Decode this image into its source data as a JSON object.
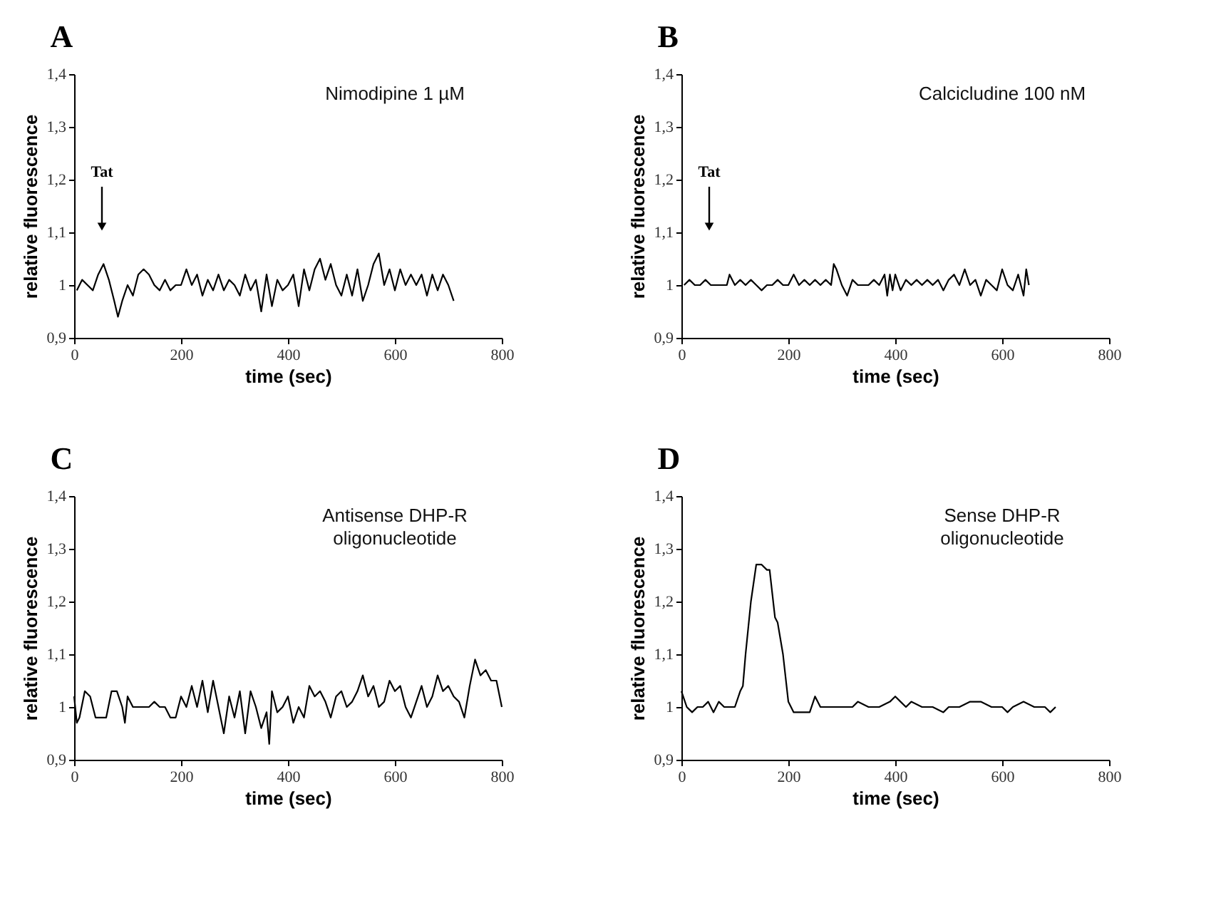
{
  "chart_data": [
    {
      "type": "line",
      "title": "A",
      "xlabel": "time (sec)",
      "ylabel": "relative fluorescence",
      "xlim": [
        0,
        800
      ],
      "xticks": [
        0,
        200,
        400,
        600,
        800
      ],
      "ylim": [
        0.9,
        1.4
      ],
      "yticks": [
        {
          "value": 0.9,
          "label": "0,9"
        },
        1,
        {
          "value": 1.1,
          "label": "1,1"
        },
        {
          "value": 1.2,
          "label": "1,2"
        },
        {
          "value": 1.3,
          "label": "1,3"
        },
        {
          "value": 1.4,
          "label": "1,4"
        }
      ],
      "grid": false,
      "annotations": [
        "Nimodipine 1 µM",
        "Tat"
      ],
      "x": [
        5,
        15,
        25,
        35,
        45,
        55,
        65,
        75,
        82,
        90,
        100,
        110,
        120,
        130,
        140,
        150,
        160,
        170,
        180,
        190,
        200,
        210,
        220,
        230,
        240,
        250,
        260,
        270,
        280,
        290,
        300,
        310,
        320,
        330,
        340,
        350,
        360,
        370,
        380,
        390,
        400,
        410,
        420,
        430,
        440,
        450,
        460,
        470,
        480,
        490,
        500,
        510,
        520,
        530,
        540,
        550,
        560,
        570,
        580,
        590,
        600,
        610,
        620,
        630,
        640,
        650,
        660,
        670,
        680,
        690,
        700,
        710
      ],
      "series": [
        {
          "color": "#000000",
          "values": [
            0.99,
            1.01,
            1.0,
            0.99,
            1.02,
            1.04,
            1.01,
            0.97,
            0.94,
            0.97,
            1.0,
            0.98,
            1.02,
            1.03,
            1.02,
            1.0,
            0.99,
            1.01,
            0.99,
            1.0,
            1.0,
            1.03,
            1.0,
            1.02,
            0.98,
            1.01,
            0.99,
            1.02,
            0.99,
            1.01,
            1.0,
            0.98,
            1.02,
            0.99,
            1.01,
            0.95,
            1.02,
            0.96,
            1.01,
            0.99,
            1.0,
            1.02,
            0.96,
            1.03,
            0.99,
            1.03,
            1.05,
            1.01,
            1.04,
            1.0,
            0.98,
            1.02,
            0.98,
            1.03,
            0.97,
            1.0,
            1.04,
            1.06,
            1.0,
            1.03,
            0.99,
            1.03,
            1.0,
            1.02,
            1.0,
            1.02,
            0.98,
            1.02,
            0.99,
            1.02,
            1.0,
            0.97
          ]
        }
      ]
    },
    {
      "type": "line",
      "title": "B",
      "xlabel": "time (sec)",
      "ylabel": "relative fluorescence",
      "xlim": [
        0,
        800
      ],
      "xticks": [
        0,
        200,
        400,
        600,
        800
      ],
      "ylim": [
        0.9,
        1.4
      ],
      "yticks": [
        {
          "value": 0.9,
          "label": "0,9"
        },
        1,
        {
          "value": 1.1,
          "label": "1,1"
        },
        {
          "value": 1.2,
          "label": "1,2"
        },
        {
          "value": 1.3,
          "label": "1,3"
        },
        {
          "value": 1.4,
          "label": "1,4"
        }
      ],
      "grid": false,
      "annotations": [
        "Calcicludine 100 nM",
        "Tat"
      ],
      "x": [
        5,
        15,
        25,
        35,
        45,
        55,
        65,
        75,
        85,
        90,
        100,
        110,
        120,
        130,
        140,
        150,
        160,
        170,
        180,
        190,
        200,
        210,
        220,
        230,
        240,
        250,
        260,
        270,
        280,
        285,
        290,
        300,
        310,
        320,
        330,
        340,
        350,
        360,
        370,
        380,
        385,
        390,
        395,
        400,
        410,
        420,
        430,
        440,
        450,
        460,
        470,
        480,
        490,
        500,
        510,
        520,
        530,
        540,
        550,
        560,
        570,
        580,
        590,
        600,
        610,
        620,
        630,
        640,
        645,
        650
      ],
      "series": [
        {
          "color": "#000000",
          "values": [
            1.0,
            1.01,
            1.0,
            1.0,
            1.01,
            1.0,
            1.0,
            1.0,
            1.0,
            1.02,
            1.0,
            1.01,
            1.0,
            1.01,
            1.0,
            0.99,
            1.0,
            1.0,
            1.01,
            1.0,
            1.0,
            1.02,
            1.0,
            1.01,
            1.0,
            1.01,
            1.0,
            1.01,
            1.0,
            1.04,
            1.03,
            1.0,
            0.98,
            1.01,
            1.0,
            1.0,
            1.0,
            1.01,
            1.0,
            1.02,
            0.98,
            1.02,
            0.99,
            1.02,
            0.99,
            1.01,
            1.0,
            1.01,
            1.0,
            1.01,
            1.0,
            1.01,
            0.99,
            1.01,
            1.02,
            1.0,
            1.03,
            1.0,
            1.01,
            0.98,
            1.01,
            1.0,
            0.99,
            1.03,
            1.0,
            0.99,
            1.02,
            0.98,
            1.03,
            1.0
          ]
        }
      ]
    },
    {
      "type": "line",
      "title": "C",
      "xlabel": "time (sec)",
      "ylabel": "relative fluorescence",
      "xlim": [
        0,
        800
      ],
      "xticks": [
        0,
        200,
        400,
        600,
        800
      ],
      "ylim": [
        0.9,
        1.4
      ],
      "yticks": [
        {
          "value": 0.9,
          "label": "0,9"
        },
        1,
        {
          "value": 1.1,
          "label": "1,1"
        },
        {
          "value": 1.2,
          "label": "1,2"
        },
        {
          "value": 1.3,
          "label": "1,3"
        },
        {
          "value": 1.4,
          "label": "1,4"
        }
      ],
      "grid": false,
      "annotations": [
        "Antisense DHP-R\noligonucleotide"
      ],
      "x": [
        0,
        5,
        10,
        20,
        30,
        40,
        50,
        60,
        70,
        80,
        90,
        95,
        100,
        110,
        120,
        130,
        140,
        150,
        160,
        170,
        180,
        190,
        200,
        210,
        220,
        230,
        240,
        250,
        260,
        270,
        280,
        290,
        300,
        310,
        320,
        330,
        340,
        350,
        360,
        365,
        370,
        380,
        390,
        400,
        410,
        420,
        430,
        440,
        450,
        460,
        470,
        480,
        490,
        500,
        510,
        520,
        530,
        540,
        550,
        560,
        570,
        580,
        590,
        600,
        610,
        620,
        630,
        640,
        650,
        660,
        670,
        680,
        690,
        700,
        710,
        720,
        730,
        740,
        750,
        760,
        770,
        780,
        790,
        800
      ],
      "series": [
        {
          "color": "#000000",
          "values": [
            1.02,
            0.97,
            0.98,
            1.03,
            1.02,
            0.98,
            0.98,
            0.98,
            1.03,
            1.03,
            1.0,
            0.97,
            1.02,
            1.0,
            1.0,
            1.0,
            1.0,
            1.01,
            1.0,
            1.0,
            0.98,
            0.98,
            1.02,
            1.0,
            1.04,
            1.0,
            1.05,
            0.99,
            1.05,
            1.0,
            0.95,
            1.02,
            0.98,
            1.03,
            0.95,
            1.03,
            1.0,
            0.96,
            0.99,
            0.93,
            1.03,
            0.99,
            1.0,
            1.02,
            0.97,
            1.0,
            0.98,
            1.04,
            1.02,
            1.03,
            1.01,
            0.98,
            1.02,
            1.03,
            1.0,
            1.01,
            1.03,
            1.06,
            1.02,
            1.04,
            1.0,
            1.01,
            1.05,
            1.03,
            1.04,
            1.0,
            0.98,
            1.01,
            1.04,
            1.0,
            1.02,
            1.06,
            1.03,
            1.04,
            1.02,
            1.01,
            0.98,
            1.04,
            1.09,
            1.06,
            1.07,
            1.05,
            1.05,
            1.0
          ]
        }
      ]
    },
    {
      "type": "line",
      "title": "D",
      "xlabel": "time (sec)",
      "ylabel": "relative fluorescence",
      "xlim": [
        0,
        800
      ],
      "xticks": [
        0,
        200,
        400,
        600,
        800
      ],
      "ylim": [
        0.9,
        1.4
      ],
      "yticks": [
        {
          "value": 0.9,
          "label": "0,9"
        },
        1,
        {
          "value": 1.1,
          "label": "1,1"
        },
        {
          "value": 1.2,
          "label": "1,2"
        },
        {
          "value": 1.3,
          "label": "1,3"
        },
        {
          "value": 1.4,
          "label": "1,4"
        }
      ],
      "grid": false,
      "annotations": [
        "Sense DHP-R\noligonucleotide"
      ],
      "x": [
        0,
        10,
        20,
        30,
        40,
        50,
        60,
        70,
        80,
        90,
        100,
        110,
        115,
        120,
        130,
        140,
        150,
        160,
        165,
        175,
        180,
        190,
        200,
        210,
        220,
        240,
        250,
        260,
        280,
        300,
        320,
        330,
        350,
        370,
        390,
        400,
        410,
        420,
        430,
        450,
        470,
        490,
        500,
        520,
        540,
        560,
        580,
        600,
        610,
        620,
        640,
        660,
        680,
        690,
        700
      ],
      "series": [
        {
          "color": "#000000",
          "values": [
            1.03,
            1.0,
            0.99,
            1.0,
            1.0,
            1.01,
            0.99,
            1.01,
            1.0,
            1.0,
            1.0,
            1.03,
            1.04,
            1.1,
            1.2,
            1.27,
            1.27,
            1.26,
            1.26,
            1.17,
            1.16,
            1.1,
            1.01,
            0.99,
            0.99,
            0.99,
            1.02,
            1.0,
            1.0,
            1.0,
            1.0,
            1.01,
            1.0,
            1.0,
            1.01,
            1.02,
            1.01,
            1.0,
            1.01,
            1.0,
            1.0,
            0.99,
            1.0,
            1.0,
            1.01,
            1.01,
            1.0,
            1.0,
            0.99,
            1.0,
            1.01,
            1.0,
            1.0,
            0.99,
            1.0
          ]
        }
      ]
    }
  ]
}
